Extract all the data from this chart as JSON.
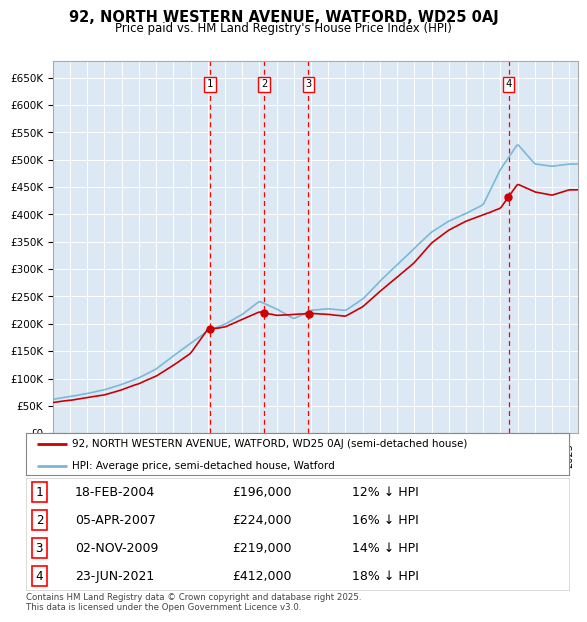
{
  "title": "92, NORTH WESTERN AVENUE, WATFORD, WD25 0AJ",
  "subtitle": "Price paid vs. HM Land Registry's House Price Index (HPI)",
  "background_color": "#dce9f5",
  "plot_bg_color": "#dce9f5",
  "red_line_label": "92, NORTH WESTERN AVENUE, WATFORD, WD25 0AJ (semi-detached house)",
  "blue_line_label": "HPI: Average price, semi-detached house, Watford",
  "transactions": [
    {
      "num": 1,
      "date": "18-FEB-2004",
      "price": "£196,000",
      "pct": "12% ↓ HPI",
      "year": 2004.13,
      "value": 196000
    },
    {
      "num": 2,
      "date": "05-APR-2007",
      "price": "£224,000",
      "pct": "16% ↓ HPI",
      "year": 2007.27,
      "value": 224000
    },
    {
      "num": 3,
      "date": "02-NOV-2009",
      "price": "£219,000",
      "pct": "14% ↓ HPI",
      "year": 2009.84,
      "value": 219000
    },
    {
      "num": 4,
      "date": "23-JUN-2021",
      "price": "£412,000",
      "pct": "18% ↓ HPI",
      "year": 2021.48,
      "value": 412000
    }
  ],
  "footer": "Contains HM Land Registry data © Crown copyright and database right 2025.\nThis data is licensed under the Open Government Licence v3.0.",
  "ylim": [
    0,
    680000
  ],
  "yticks": [
    0,
    50000,
    100000,
    150000,
    200000,
    250000,
    300000,
    350000,
    400000,
    450000,
    500000,
    550000,
    600000,
    650000
  ],
  "ytick_labels": [
    "£0",
    "£50K",
    "£100K",
    "£150K",
    "£200K",
    "£250K",
    "£300K",
    "£350K",
    "£400K",
    "£450K",
    "£500K",
    "£550K",
    "£600K",
    "£650K"
  ]
}
